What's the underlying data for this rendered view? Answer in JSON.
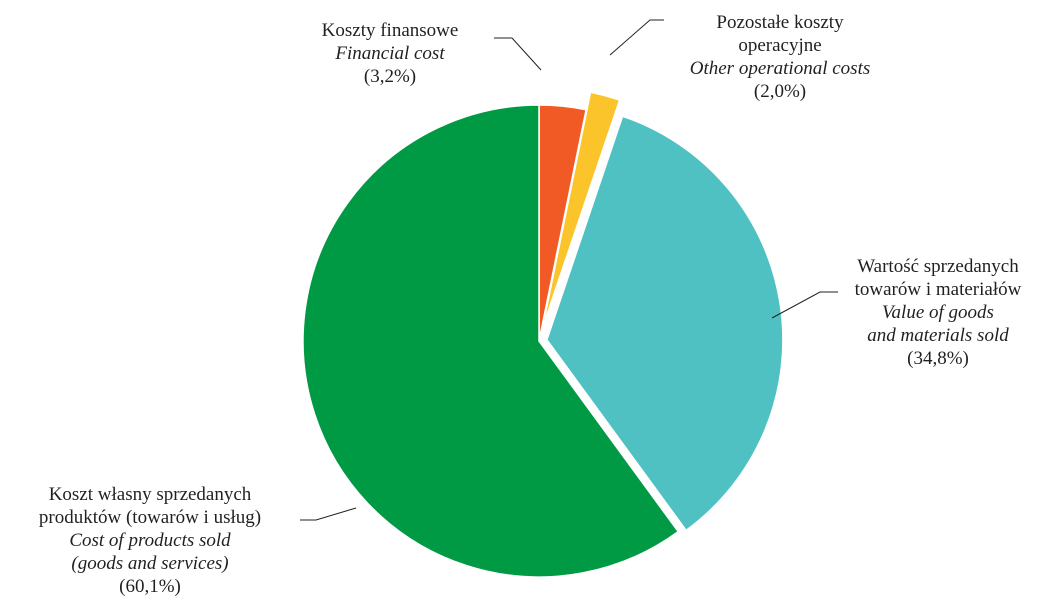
{
  "chart_data": {
    "type": "pie",
    "title": "",
    "slices": [
      {
        "key": "financial",
        "value": 3.2,
        "percent_label": "(3,2%)",
        "label_pl": [
          "Koszty finansowe"
        ],
        "label_en": [
          "Financial cost"
        ],
        "color": "#f15a24",
        "exploded": true
      },
      {
        "key": "other-operational",
        "value": 2.0,
        "percent_label": "(2,0%)",
        "label_pl": [
          "Pozostałe koszty",
          "operacyjne"
        ],
        "label_en": [
          "Other operational costs"
        ],
        "color": "#fbc42a",
        "exploded": true
      },
      {
        "key": "goods-materials",
        "value": 34.8,
        "percent_label": "(34,8%)",
        "label_pl": [
          "Wartość sprzedanych",
          "towarów i materiałów"
        ],
        "label_en": [
          "Value of goods",
          "and materials sold"
        ],
        "color": "#4fc1c2",
        "exploded": true
      },
      {
        "key": "cost-products",
        "value": 60.1,
        "percent_label": "(60,1%)",
        "label_pl": [
          "Koszt własny sprzedanych",
          "produktów (towarów i usług)"
        ],
        "label_en": [
          "Cost of products sold",
          "(goods and  services)"
        ],
        "color": "#009a44",
        "exploded": false
      }
    ],
    "legend": "none"
  }
}
